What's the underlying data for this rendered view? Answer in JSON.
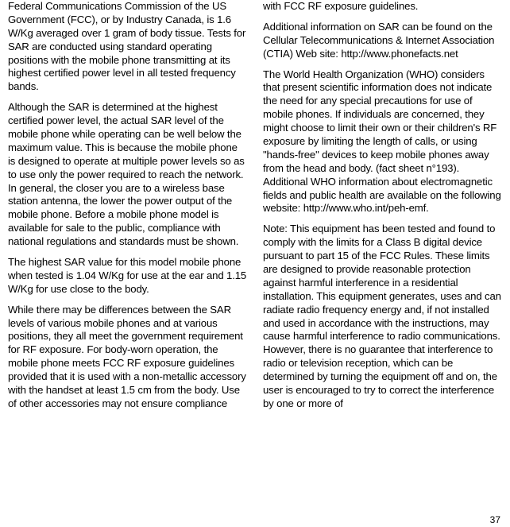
{
  "left": {
    "p1": "Federal Communications Commission of the US Government (FCC), or by Industry Canada, is 1.6 W/Kg averaged over 1 gram of body tissue. Tests for SAR are conducted using standard operating positions with the mobile phone transmitting at its highest certified power level in all tested frequency bands.",
    "p2": "Although the SAR is determined at the highest certified power level, the actual SAR level of the mobile phone while operating can be well below the maximum value. This is because the mobile phone is designed to operate at multiple power levels so as to use only the power required to reach the network. In general, the closer you are to a wireless base station antenna, the lower the power output of the mobile phone. Before a mobile phone model is available for sale to the public, compliance with national regulations and standards must be shown.",
    "p3": "The highest SAR value for this model mobile phone when tested is 1.04 W/Kg for use at the ear and 1.15 W/Kg for use close to the body.",
    "p4": "While there may be differences between the SAR levels of various mobile phones and at various positions, they all meet the government requirement for RF exposure. For body-worn operation, the mobile phone meets FCC RF exposure guidelines provided that it is used with a non-metallic accessory with the handset at least 1.5 cm from the body. Use of other accessories may not ensure compliance"
  },
  "right": {
    "p1": "with FCC RF exposure guidelines.",
    "p2": "Additional information on SAR can be found on the Cellular Telecommunications & Internet Association (CTIA) Web site: http://www.phonefacts.net",
    "p3": "The World Health Organization (WHO) considers that present scientific information does not indicate the need for any special precautions for use of mobile phones. If individuals are concerned, they might choose to limit their own or their children's RF exposure by limiting the length of calls, or using \"hands-free\" devices to keep mobile phones away from the head and body. (fact sheet n°193). Additional WHO information about electromagnetic fields and public health are available on the following website: http://www.who.int/peh-emf.",
    "p4": "Note: This equipment has been tested and found to comply with the limits for a Class B digital device pursuant to part 15 of the FCC Rules. These limits are designed to provide reasonable protection against harmful interference in a residential installation. This equipment generates, uses and can radiate radio frequency energy and, if not installed and used in accordance with the instructions, may cause harmful interference to radio communications. However, there is no guarantee that interference to radio or television reception, which can be determined by turning the equipment off and on, the user is encouraged to try to correct the interference by one or more of"
  },
  "pagenum": "37"
}
